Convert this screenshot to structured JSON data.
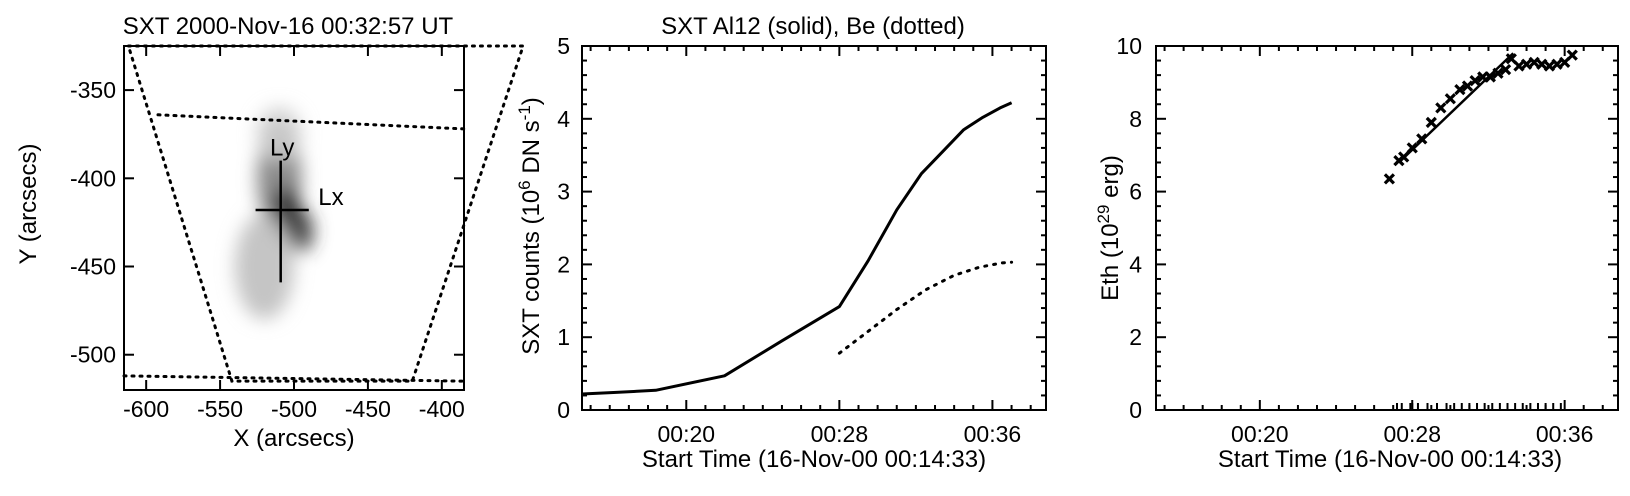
{
  "chart_data": [
    {
      "type": "image",
      "title": "SXT 2000-Nov-16 00:32:57 UT",
      "xlabel": "X (arcsecs)",
      "ylabel": "Y (arcsecs)",
      "xlim": [
        -615,
        -385
      ],
      "ylim": [
        -520,
        -325
      ],
      "xticks": [
        -600,
        -550,
        -500,
        -450,
        -400
      ],
      "yticks": [
        -350,
        -400,
        -450,
        -500
      ],
      "xtick_labels": [
        "-600",
        "-550",
        "-500",
        "-450",
        "-400"
      ],
      "ytick_labels": [
        "-350",
        "-400",
        "-450",
        "-500"
      ],
      "annotations": [
        {
          "text": "Ly",
          "x": -508,
          "y": -387
        },
        {
          "text": "Lx",
          "x": -475,
          "y": -415
        }
      ],
      "crosshair": {
        "x": -509,
        "y": -418,
        "x_extent": [
          -526,
          -490
        ],
        "y_extent": [
          -390,
          -459
        ]
      },
      "dotted_box": [
        [
          -612,
          -325
        ],
        [
          -345,
          -325
        ],
        [
          -420,
          -515
        ],
        [
          -542,
          -515
        ]
      ],
      "dotted_line_upper": [
        [
          -592,
          -364
        ],
        [
          -385,
          -372
        ]
      ],
      "dotted_line_lower": [
        [
          -615,
          -512
        ],
        [
          -385,
          -515
        ]
      ],
      "source_blobs": [
        {
          "x": -510,
          "y": -400,
          "rx": 15,
          "ry": 30,
          "intensity": 0.5
        },
        {
          "x": -505,
          "y": -420,
          "rx": 10,
          "ry": 15,
          "intensity": 0.85
        },
        {
          "x": -495,
          "y": -430,
          "rx": 8,
          "ry": 12,
          "intensity": 0.8
        },
        {
          "x": -520,
          "y": -450,
          "rx": 20,
          "ry": 30,
          "intensity": 0.25
        },
        {
          "x": -510,
          "y": -375,
          "rx": 15,
          "ry": 15,
          "intensity": 0.2
        }
      ]
    },
    {
      "type": "line",
      "title": "SXT Al12 (solid), Be (dotted)",
      "xlabel": "Start Time (16-Nov-00 00:14:33)",
      "ylabel": "SXT counts (10^6 DN s^-1)",
      "ylabel_parts": {
        "pre": "SXT counts (10",
        "sup1": "6",
        "mid": " DN s",
        "sup2": "-1",
        "post": ")"
      },
      "xlim": [
        14.55,
        38.8
      ],
      "ylim": [
        0,
        5
      ],
      "xticks": [
        20,
        28,
        36
      ],
      "xtick_labels": [
        "00:20",
        "00:28",
        "00:36"
      ],
      "yticks": [
        0,
        1,
        2,
        3,
        4,
        5
      ],
      "ytick_labels": [
        "0",
        "1",
        "2",
        "3",
        "4",
        "5"
      ],
      "series": [
        {
          "name": "Al12",
          "style": "solid",
          "x": [
            14.55,
            16.2,
            18.4,
            22.0,
            25.0,
            28.0,
            29.5,
            31.0,
            32.3,
            33.4,
            34.5,
            35.5,
            36.4,
            37.0
          ],
          "y": [
            0.22,
            0.24,
            0.27,
            0.47,
            0.95,
            1.42,
            2.05,
            2.75,
            3.25,
            3.55,
            3.85,
            4.02,
            4.15,
            4.22
          ]
        },
        {
          "name": "Be",
          "style": "dotted",
          "x": [
            28.0,
            29.5,
            31.0,
            32.5,
            34.0,
            35.3,
            36.5,
            37.0
          ],
          "y": [
            0.78,
            1.08,
            1.38,
            1.65,
            1.85,
            1.96,
            2.02,
            2.03
          ]
        }
      ]
    },
    {
      "type": "scatter",
      "title": "",
      "xlabel": "Start Time (16-Nov-00 00:14:33)",
      "ylabel": "Eth (10^29 erg)",
      "ylabel_parts": {
        "pre": "Eth (10",
        "sup1": "29",
        "post": " erg)"
      },
      "xlim": [
        14.55,
        38.8
      ],
      "ylim": [
        0,
        10
      ],
      "xticks": [
        20,
        28,
        36
      ],
      "xtick_labels": [
        "00:20",
        "00:28",
        "00:36"
      ],
      "yticks": [
        0,
        2,
        4,
        6,
        8,
        10
      ],
      "ytick_labels": [
        "0",
        "2",
        "4",
        "6",
        "8",
        "10"
      ],
      "series": [
        {
          "name": "Eth",
          "marker": "x",
          "x": [
            26.8,
            27.3,
            27.55,
            28.0,
            28.5,
            29.0,
            29.5,
            30.0,
            30.5,
            30.9,
            31.3,
            31.7,
            32.1,
            32.5,
            32.9,
            33.2,
            33.6,
            34.0,
            34.4,
            34.8,
            35.2,
            35.6,
            36.0,
            36.4
          ],
          "y": [
            6.35,
            6.85,
            6.95,
            7.2,
            7.45,
            7.9,
            8.3,
            8.55,
            8.8,
            8.9,
            9.05,
            9.15,
            9.15,
            9.25,
            9.35,
            9.65,
            9.45,
            9.5,
            9.55,
            9.5,
            9.45,
            9.5,
            9.55,
            9.75
          ]
        },
        {
          "name": "fit",
          "style": "solid",
          "x": [
            27.3,
            33.3
          ],
          "y": [
            6.8,
            9.8
          ]
        }
      ],
      "rug_x": [
        27.2,
        27.45,
        27.9,
        28.0,
        28.3,
        28.8,
        29.3,
        29.8,
        30.2,
        30.6,
        31.0,
        31.4,
        31.8,
        32.2,
        32.6,
        33.0,
        33.4,
        33.8,
        34.2,
        34.6,
        35.0,
        35.4,
        35.8
      ]
    }
  ]
}
